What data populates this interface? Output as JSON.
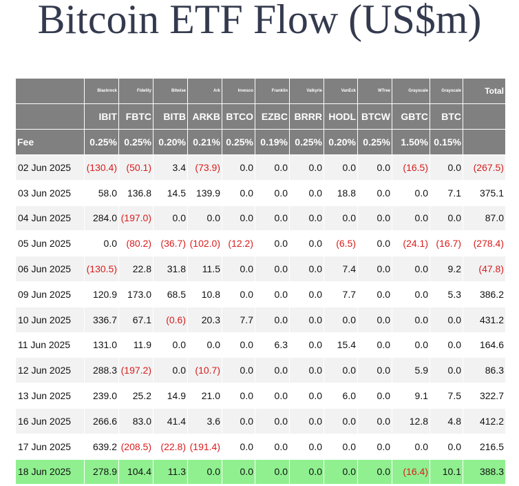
{
  "title": "Bitcoin ETF Flow (US$m)",
  "issuers": [
    "Blackrock",
    "Fidelity",
    "Bitwise",
    "Ark",
    "Invesco",
    "Franklin",
    "Valkyrie",
    "VanEck",
    "WTree",
    "Grayscale",
    "Grayscale"
  ],
  "total_label": "Total",
  "tickers": [
    "IBIT",
    "FBTC",
    "BITB",
    "ARKB",
    "BTCO",
    "EZBC",
    "BRRR",
    "HODL",
    "BTCW",
    "GBTC",
    "BTC"
  ],
  "fee_label": "Fee",
  "fees": [
    "0.25%",
    "0.25%",
    "0.20%",
    "0.21%",
    "0.25%",
    "0.19%",
    "0.25%",
    "0.20%",
    "0.25%",
    "1.50%",
    "0.15%"
  ],
  "rows": [
    {
      "date": "02 Jun 2025",
      "values": [
        "(130.4)",
        "(50.1)",
        "3.4",
        "(73.9)",
        "0.0",
        "0.0",
        "0.0",
        "0.0",
        "0.0",
        "(16.5)",
        "0.0"
      ],
      "total": "(267.5)"
    },
    {
      "date": "03 Jun 2025",
      "values": [
        "58.0",
        "136.8",
        "14.5",
        "139.9",
        "0.0",
        "0.0",
        "0.0",
        "18.8",
        "0.0",
        "0.0",
        "7.1"
      ],
      "total": "375.1"
    },
    {
      "date": "04 Jun 2025",
      "values": [
        "284.0",
        "(197.0)",
        "0.0",
        "0.0",
        "0.0",
        "0.0",
        "0.0",
        "0.0",
        "0.0",
        "0.0",
        "0.0"
      ],
      "total": "87.0"
    },
    {
      "date": "05 Jun 2025",
      "values": [
        "0.0",
        "(80.2)",
        "(36.7)",
        "(102.0)",
        "(12.2)",
        "0.0",
        "0.0",
        "(6.5)",
        "0.0",
        "(24.1)",
        "(16.7)"
      ],
      "total": "(278.4)"
    },
    {
      "date": "06 Jun 2025",
      "values": [
        "(130.5)",
        "22.8",
        "31.8",
        "11.5",
        "0.0",
        "0.0",
        "0.0",
        "7.4",
        "0.0",
        "0.0",
        "9.2"
      ],
      "total": "(47.8)"
    },
    {
      "date": "09 Jun 2025",
      "values": [
        "120.9",
        "173.0",
        "68.5",
        "10.8",
        "0.0",
        "0.0",
        "0.0",
        "7.7",
        "0.0",
        "0.0",
        "5.3"
      ],
      "total": "386.2"
    },
    {
      "date": "10 Jun 2025",
      "values": [
        "336.7",
        "67.1",
        "(0.6)",
        "20.3",
        "7.7",
        "0.0",
        "0.0",
        "0.0",
        "0.0",
        "0.0",
        "0.0"
      ],
      "total": "431.2"
    },
    {
      "date": "11 Jun 2025",
      "values": [
        "131.0",
        "11.9",
        "0.0",
        "0.0",
        "0.0",
        "6.3",
        "0.0",
        "15.4",
        "0.0",
        "0.0",
        "0.0"
      ],
      "total": "164.6"
    },
    {
      "date": "12 Jun 2025",
      "values": [
        "288.3",
        "(197.2)",
        "0.0",
        "(10.7)",
        "0.0",
        "0.0",
        "0.0",
        "0.0",
        "0.0",
        "5.9",
        "0.0"
      ],
      "total": "86.3"
    },
    {
      "date": "13 Jun 2025",
      "values": [
        "239.0",
        "25.2",
        "14.9",
        "21.0",
        "0.0",
        "0.0",
        "0.0",
        "6.0",
        "0.0",
        "9.1",
        "7.5"
      ],
      "total": "322.7"
    },
    {
      "date": "16 Jun 2025",
      "values": [
        "266.6",
        "83.0",
        "41.4",
        "3.6",
        "0.0",
        "0.0",
        "0.0",
        "0.0",
        "0.0",
        "12.8",
        "4.8"
      ],
      "total": "412.2"
    },
    {
      "date": "17 Jun 2025",
      "values": [
        "639.2",
        "(208.5)",
        "(22.8)",
        "(191.4)",
        "0.0",
        "0.0",
        "0.0",
        "0.0",
        "0.0",
        "0.0",
        "0.0"
      ],
      "total": "216.5"
    },
    {
      "date": "18 Jun 2025",
      "values": [
        "278.9",
        "104.4",
        "11.3",
        "0.0",
        "0.0",
        "0.0",
        "0.0",
        "0.0",
        "0.0",
        "(16.4)",
        "10.1"
      ],
      "total": "388.3",
      "highlight": true
    }
  ],
  "colors": {
    "header_bg": "#808080",
    "row_alt_bg": "#f2f2f2",
    "highlight_bg": "#90f090",
    "negative_text": "#d91b1b",
    "title_text": "#343a4e"
  }
}
